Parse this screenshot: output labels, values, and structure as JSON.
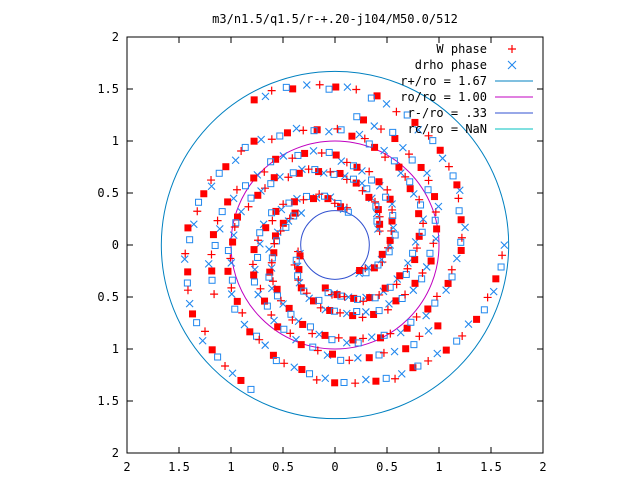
{
  "chart_data": {
    "type": "scatter",
    "title": "m3/n1.5/q1.5/r-+.20-j104/M50.0/512",
    "xlabel": "",
    "ylabel": "",
    "xlim": [
      -2,
      2
    ],
    "ylim": [
      -2,
      2
    ],
    "grid": false,
    "legend_position": "top-right",
    "x_ticks": [
      "2",
      "1.5",
      "1",
      "0.5",
      "0",
      "0.5",
      "1",
      "1.5",
      "2"
    ],
    "y_ticks": [
      "2",
      "1.5",
      "1",
      "0.5",
      "0",
      "0.5",
      "1",
      "1.5",
      "2"
    ],
    "series": [
      {
        "name": "W phase",
        "marker": "plus",
        "color": "#ff0000"
      },
      {
        "name": "drho phase",
        "marker": "cross",
        "color": "#2288ee"
      },
      {
        "name": "r+/ro = 1.67",
        "kind": "circle",
        "radius": 1.67,
        "color": "#0080c0"
      },
      {
        "name": "ro/ro = 1.00",
        "kind": "circle",
        "radius": 1.0,
        "color": "#c000c0"
      },
      {
        "name": "r-/ro = .33",
        "kind": "circle",
        "radius": 0.33,
        "color": "#3050d0"
      },
      {
        "name": "rc/ro = NaN",
        "kind": "circle",
        "radius": null,
        "color": "#00c0c0"
      }
    ],
    "arms": [
      {
        "r0": 0.45,
        "r1": 1.62,
        "theta0": 0.3,
        "turns": 0.95,
        "n": 90
      },
      {
        "r0": 0.45,
        "r1": 1.62,
        "theta0": 2.4,
        "turns": 0.95,
        "n": 90
      },
      {
        "r0": 0.45,
        "r1": 1.62,
        "theta0": 4.5,
        "turns": 0.95,
        "n": 90
      },
      {
        "r0": 0.35,
        "r1": 1.25,
        "theta0": 1.2,
        "turns": 0.7,
        "n": 60
      },
      {
        "r0": 0.35,
        "r1": 1.25,
        "theta0": 3.3,
        "turns": 0.7,
        "n": 60
      },
      {
        "r0": 0.35,
        "r1": 1.25,
        "theta0": 5.4,
        "turns": 0.7,
        "n": 60
      }
    ]
  }
}
